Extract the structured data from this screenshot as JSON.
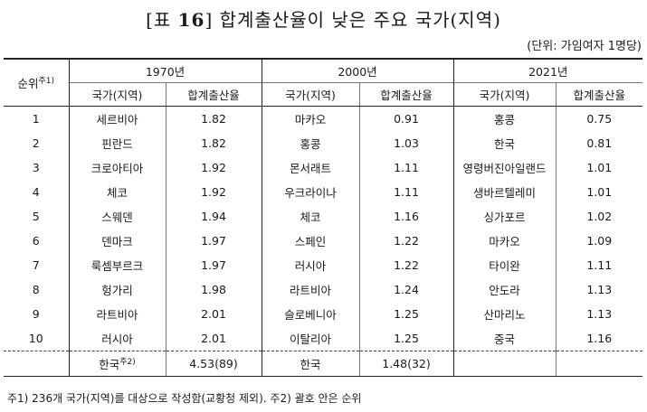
{
  "title": {
    "prefix": "[표 ",
    "number": "16",
    "suffix": "] 합계출산율이 낮은 주요 국가(지역)"
  },
  "unit": "(단위: 가임여자 1명당)",
  "header": {
    "rank_label": "순위",
    "rank_note": "주1)",
    "years": [
      "1970년",
      "2000년",
      "2021년"
    ],
    "country_col": "국가(지역)",
    "tfr_col": "합계출산율"
  },
  "rows": [
    {
      "rank": "1",
      "c1970": "세르비아",
      "v1970": "1.82",
      "c2000": "마카오",
      "v2000": "0.91",
      "c2021": "홍콩",
      "v2021": "0.75"
    },
    {
      "rank": "2",
      "c1970": "핀란드",
      "v1970": "1.82",
      "c2000": "홍콩",
      "v2000": "1.03",
      "c2021": "한국",
      "v2021": "0.81"
    },
    {
      "rank": "3",
      "c1970": "크로아티아",
      "v1970": "1.92",
      "c2000": "몬서래트",
      "v2000": "1.11",
      "c2021": "영령버진아일랜드",
      "v2021": "1.01"
    },
    {
      "rank": "4",
      "c1970": "체코",
      "v1970": "1.92",
      "c2000": "우크라이나",
      "v2000": "1.11",
      "c2021": "생바르텔레미",
      "v2021": "1.01"
    },
    {
      "rank": "5",
      "c1970": "스웨덴",
      "v1970": "1.94",
      "c2000": "체코",
      "v2000": "1.16",
      "c2021": "싱가포르",
      "v2021": "1.02"
    },
    {
      "rank": "6",
      "c1970": "덴마크",
      "v1970": "1.97",
      "c2000": "스페인",
      "v2000": "1.22",
      "c2021": "마카오",
      "v2021": "1.09"
    },
    {
      "rank": "7",
      "c1970": "룩셈부르크",
      "v1970": "1.97",
      "c2000": "러시아",
      "v2000": "1.22",
      "c2021": "타이완",
      "v2021": "1.11"
    },
    {
      "rank": "8",
      "c1970": "헝가리",
      "v1970": "1.98",
      "c2000": "라트비아",
      "v2000": "1.24",
      "c2021": "안도라",
      "v2021": "1.13"
    },
    {
      "rank": "9",
      "c1970": "라트비아",
      "v1970": "2.01",
      "c2000": "슬로베니아",
      "v2000": "1.25",
      "c2021": "산마리노",
      "v2021": "1.13"
    },
    {
      "rank": "10",
      "c1970": "러시아",
      "v1970": "2.01",
      "c2000": "이탈리아",
      "v2000": "1.25",
      "c2021": "중국",
      "v2021": "1.16"
    }
  ],
  "korea_row": {
    "c1970": "한국",
    "c1970_note": "주2)",
    "v1970": "4.53(89)",
    "c2000": "한국",
    "v2000": "1.48(32)",
    "c2021": "",
    "v2021": ""
  },
  "footnote": "주1) 236개 국가(지역)를 대상으로 작성함(교황청 제외).  주2) 괄호 안은 순위"
}
